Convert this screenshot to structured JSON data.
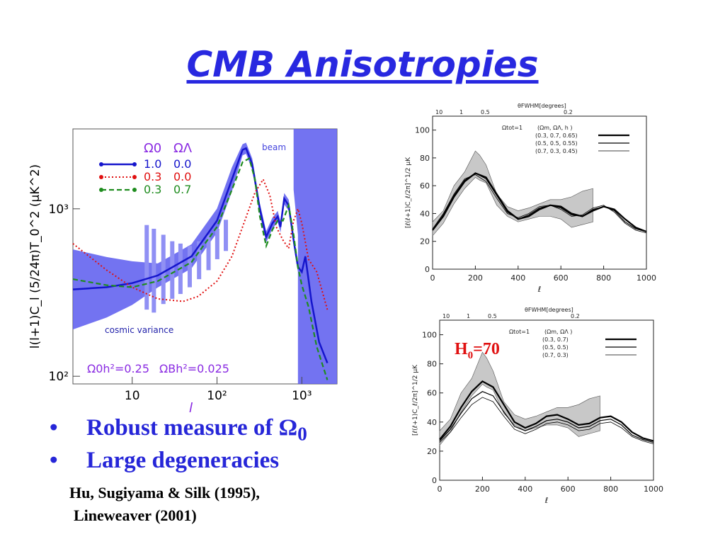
{
  "slide": {
    "title": "CMB Anisotropies",
    "bullets": [
      {
        "text": "Robust measure of Ω",
        "sub": "0"
      },
      {
        "text": "Large degeneracies",
        "sub": ""
      }
    ],
    "references": [
      "Hu, Sugiyama & Silk (1995),",
      "Lineweaver (2001)"
    ],
    "h0_label": {
      "text": "H",
      "sub": "0",
      "rest": "=70"
    }
  },
  "colors": {
    "title": "#2828e0",
    "band": "#5a5aee",
    "band_light": "#9090f4",
    "solid_curve": "#1515cc",
    "dotted_curve": "#e01010",
    "dashed_curve": "#1e8c1e",
    "label_purple": "#8a2be2",
    "h0": "#e01010"
  },
  "chart_data": [
    {
      "type": "line",
      "xscale": "log",
      "yscale": "log",
      "xlabel": "l",
      "ylabel": "l(l+1)C_l (5/24π)T_0^2 (μK^2)",
      "xticks": [
        "10",
        "10²",
        "10³"
      ],
      "yticks": [
        "10³",
        "10²"
      ],
      "xlim": [
        2,
        2600
      ],
      "ylim": [
        90,
        3000
      ],
      "legend": {
        "header": [
          "Ω0",
          "ΩΛ"
        ],
        "position": "top-center"
      },
      "series": [
        {
          "name": "1.0 0.0",
          "omega0": "1.0",
          "omegaL": "0.0",
          "style": "solid",
          "x": [
            2,
            5,
            10,
            20,
            50,
            100,
            150,
            200,
            220,
            260,
            320,
            380,
            450,
            520,
            560,
            620,
            700,
            800,
            900,
            1000,
            1100,
            1300,
            1600,
            2000
          ],
          "y": [
            330,
            340,
            360,
            400,
            520,
            850,
            1500,
            2250,
            2300,
            1850,
            1000,
            680,
            820,
            900,
            780,
            1150,
            1050,
            650,
            450,
            420,
            520,
            280,
            160,
            120
          ]
        },
        {
          "name": "0.3 0.0",
          "omega0": "0.3",
          "omegaL": "0.0",
          "style": "dotted",
          "x": [
            2,
            5,
            10,
            20,
            40,
            60,
            100,
            150,
            200,
            280,
            350,
            420,
            500,
            600,
            700,
            800,
            900,
            1000,
            1200,
            1500,
            2000
          ],
          "y": [
            620,
            430,
            340,
            290,
            280,
            300,
            370,
            520,
            780,
            1250,
            1500,
            1200,
            780,
            650,
            580,
            850,
            1000,
            820,
            500,
            420,
            250
          ]
        },
        {
          "name": "0.3 0.7",
          "omega0": "0.3",
          "omegaL": "0.7",
          "style": "dashed",
          "x": [
            2,
            5,
            10,
            20,
            50,
            100,
            150,
            200,
            240,
            280,
            320,
            380,
            450,
            520,
            600,
            700,
            800,
            900,
            1000,
            1200,
            1500,
            2000
          ],
          "y": [
            380,
            350,
            340,
            370,
            480,
            780,
            1300,
            1900,
            2000,
            1500,
            900,
            600,
            750,
            850,
            850,
            1050,
            700,
            450,
            350,
            260,
            150,
            95
          ]
        }
      ],
      "annotations": [
        "beam",
        "cosmic variance",
        "Ω0h²=0.25",
        "ΩBh²=0.025"
      ]
    },
    {
      "type": "line",
      "xlabel": "ℓ",
      "ylabel": "[ℓ(ℓ+1)C_ℓ/2π]^1/2 μK",
      "xlim": [
        0,
        1000
      ],
      "ylim": [
        0,
        110
      ],
      "xticks": [
        0,
        200,
        400,
        600,
        800,
        1000
      ],
      "yticks": [
        0,
        20,
        40,
        60,
        80,
        100
      ],
      "top_axis": {
        "label": "θFWHM[degrees]",
        "ticks": [
          "10",
          "1",
          "0.5",
          "0.2"
        ]
      },
      "legend_header": "Ωtot=1",
      "legend_cols": "(Ωm, ΩΛ, h )",
      "series": [
        {
          "name": "(0.3, 0.7, 0.65)",
          "x": [
            0,
            50,
            100,
            150,
            200,
            250,
            300,
            350,
            400,
            450,
            500,
            550,
            600,
            650,
            700,
            750,
            800,
            850,
            900,
            950,
            1000
          ],
          "y": [
            28,
            38,
            52,
            63,
            69,
            66,
            54,
            42,
            36,
            38,
            43,
            46,
            45,
            40,
            38,
            42,
            45,
            43,
            36,
            30,
            27
          ]
        },
        {
          "name": "(0.5, 0.5, 0.55)",
          "x": [
            0,
            50,
            100,
            150,
            200,
            250,
            300,
            350,
            400,
            450,
            500,
            550,
            600,
            650,
            700,
            750,
            800,
            850,
            900,
            950,
            1000
          ],
          "y": [
            28,
            39,
            53,
            64,
            69,
            65,
            53,
            41,
            36,
            39,
            44,
            46,
            44,
            39,
            38,
            43,
            45,
            42,
            34,
            29,
            27
          ]
        },
        {
          "name": "(0.7, 0.3, 0.45)",
          "x": [
            0,
            50,
            100,
            150,
            200,
            250,
            300,
            350,
            400,
            450,
            500,
            550,
            600,
            650,
            700,
            750,
            800,
            850,
            900,
            950,
            1000
          ],
          "y": [
            29,
            40,
            54,
            65,
            68,
            63,
            51,
            40,
            37,
            40,
            45,
            46,
            43,
            38,
            39,
            44,
            46,
            41,
            33,
            28,
            26
          ]
        }
      ],
      "data_band": {
        "x": [
          0,
          50,
          100,
          150,
          200,
          220,
          250,
          300,
          350,
          400,
          450,
          500,
          550,
          600,
          650,
          700,
          750
        ],
        "upper": [
          34,
          42,
          60,
          70,
          85,
          82,
          75,
          54,
          45,
          42,
          44,
          47,
          50,
          50,
          52,
          56,
          58
        ],
        "lower": [
          24,
          33,
          47,
          58,
          66,
          64,
          62,
          46,
          38,
          34,
          36,
          38,
          38,
          36,
          30,
          32,
          34
        ]
      }
    },
    {
      "type": "line",
      "xlabel": "ℓ",
      "ylabel": "[ℓ(ℓ+1)C_ℓ/2π]^1/2 μK",
      "xlim": [
        0,
        1000
      ],
      "ylim": [
        0,
        110
      ],
      "xticks": [
        0,
        200,
        400,
        600,
        800,
        1000
      ],
      "yticks": [
        0,
        20,
        40,
        60,
        80,
        100
      ],
      "top_axis": {
        "label": "θFWHM[degrees]",
        "ticks": [
          "10",
          "1",
          "0.5",
          "0.2"
        ]
      },
      "legend_header": "Ωtot=1",
      "legend_cols": "(Ωm, ΩΛ )",
      "series": [
        {
          "name": "(0.3, 0.7)",
          "x": [
            0,
            50,
            100,
            150,
            200,
            250,
            300,
            350,
            400,
            450,
            500,
            550,
            600,
            650,
            700,
            750,
            800,
            850,
            900,
            950,
            1000
          ],
          "y": [
            28,
            37,
            50,
            61,
            68,
            64,
            52,
            40,
            36,
            39,
            44,
            45,
            42,
            38,
            39,
            43,
            44,
            40,
            33,
            29,
            27
          ]
        },
        {
          "name": "(0.5, 0.5)",
          "x": [
            0,
            50,
            100,
            150,
            200,
            250,
            300,
            350,
            400,
            450,
            500,
            550,
            600,
            650,
            700,
            750,
            800,
            850,
            900,
            950,
            1000
          ],
          "y": [
            27,
            35,
            46,
            56,
            61,
            58,
            47,
            37,
            34,
            37,
            41,
            42,
            40,
            36,
            37,
            41,
            42,
            38,
            31,
            28,
            26
          ]
        },
        {
          "name": "(0.7, 0.3)",
          "x": [
            0,
            50,
            100,
            150,
            200,
            250,
            300,
            350,
            400,
            450,
            500,
            550,
            600,
            650,
            700,
            750,
            800,
            850,
            900,
            950,
            1000
          ],
          "y": [
            26,
            33,
            43,
            52,
            57,
            54,
            44,
            35,
            32,
            35,
            39,
            40,
            38,
            34,
            35,
            39,
            40,
            36,
            30,
            27,
            25
          ]
        }
      ],
      "data_band": {
        "x": [
          0,
          50,
          100,
          150,
          200,
          220,
          250,
          300,
          350,
          400,
          450,
          500,
          550,
          600,
          650,
          700,
          750
        ],
        "upper": [
          34,
          42,
          60,
          70,
          88,
          84,
          75,
          54,
          45,
          42,
          44,
          47,
          50,
          50,
          52,
          56,
          58
        ],
        "lower": [
          24,
          33,
          47,
          58,
          66,
          64,
          62,
          46,
          38,
          34,
          36,
          38,
          38,
          36,
          30,
          32,
          34
        ]
      }
    }
  ]
}
